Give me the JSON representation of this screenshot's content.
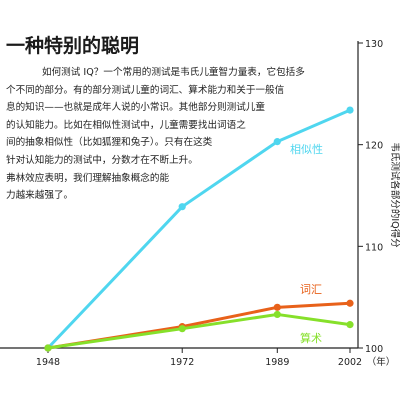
{
  "title": "一种特别的聪明",
  "paragraph_lines": [
    "如何测试 IQ？一个常用的测试是韦氏儿童智力量表，它包括多",
    "个不同的部分。有的部分测试儿童的词汇、算术能力和关于一般信",
    "息的知识——也就是成年人说的小常识。其他部分则测试儿童",
    "的认知能力。比如在相似性测试中，儿童需要找出词语之",
    "间的抽象相似性（比如狐狸和兔子）。只有在这类",
    "针对认知能力的测试中，分数才在不断上升。",
    "弗林效应表明，我们理解抽象概念的能",
    "力越来越强了。"
  ],
  "chart_data": {
    "type": "line",
    "x": [
      1948,
      1972,
      1989,
      2002
    ],
    "xticks": [
      "1948",
      "1972",
      "1989",
      "2002"
    ],
    "x_unit": "（年）",
    "ylabel": "韦氏测试各部分的IQ得分",
    "ylim": [
      100,
      130
    ],
    "yticks": [
      100,
      110,
      120,
      130
    ],
    "grid": false,
    "series": [
      {
        "name": "相似性",
        "color": "#4fd6ef",
        "values": [
          100,
          113.9,
          120.3,
          123.4
        ]
      },
      {
        "name": "词汇",
        "color": "#e8611a",
        "values": [
          100,
          102.1,
          104.0,
          104.4
        ]
      },
      {
        "name": "算术",
        "color": "#86e02a",
        "values": [
          100,
          101.9,
          103.3,
          102.3
        ]
      }
    ]
  }
}
